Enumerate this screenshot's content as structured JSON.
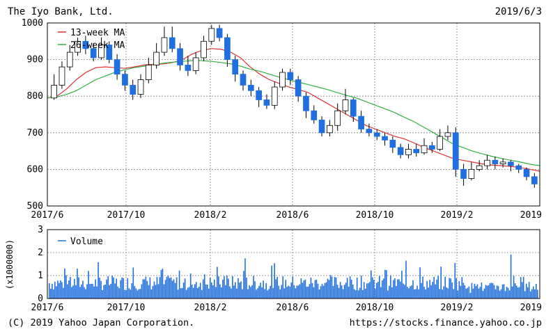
{
  "header": {
    "company": "The Iyo Bank, Ltd.",
    "date": "2019/6/3"
  },
  "footer": {
    "copyright": "(C) 2019 Yahoo Japan Corporation.",
    "url": "https://stocks.finance.yahoo.co.jp"
  },
  "colors": {
    "up": "#ffffff",
    "down": "#1f6fe0",
    "ma13": "#e03030",
    "ma26": "#30b040",
    "volume": "#1f6fe0",
    "grid": "#808080"
  },
  "chart_data": [
    {
      "type": "candlestick",
      "ylim": [
        500,
        1000
      ],
      "yticks": [
        "500",
        "600",
        "700",
        "800",
        "900",
        "1000"
      ],
      "xticks": [
        "2017/6",
        "2017/10",
        "2018/2",
        "2018/6",
        "2018/10",
        "2019/2",
        "2019"
      ],
      "series": [
        {
          "name": "13-week MA",
          "color": "#e03030",
          "values": [
            795,
            800,
            820,
            845,
            865,
            878,
            880,
            878,
            876,
            880,
            885,
            887,
            888,
            892,
            900,
            915,
            925,
            930,
            928,
            920,
            905,
            880,
            860,
            845,
            835,
            825,
            818,
            810,
            795,
            780,
            765,
            750,
            735,
            720,
            710,
            700,
            690,
            683,
            672,
            660,
            650,
            640,
            630,
            625,
            620,
            615,
            612,
            610,
            608,
            605,
            600,
            595
          ]
        },
        {
          "name": "26-week MA",
          "color": "#30b040",
          "values": [
            795,
            798,
            805,
            815,
            830,
            845,
            855,
            865,
            872,
            878,
            882,
            886,
            890,
            893,
            895,
            897,
            897,
            895,
            892,
            888,
            882,
            874,
            868,
            860,
            852,
            845,
            838,
            832,
            825,
            818,
            810,
            802,
            795,
            785,
            775,
            765,
            755,
            742,
            730,
            715,
            700,
            685,
            670,
            660,
            650,
            643,
            636,
            630,
            625,
            620,
            614,
            610
          ]
        }
      ],
      "candles": [
        [
          795,
          830,
          860,
          790
        ],
        [
          830,
          880,
          895,
          820
        ],
        [
          880,
          920,
          940,
          870
        ],
        [
          920,
          950,
          960,
          910
        ],
        [
          950,
          930,
          965,
          915
        ],
        [
          930,
          905,
          945,
          895
        ],
        [
          905,
          940,
          960,
          900
        ],
        [
          940,
          900,
          950,
          890
        ],
        [
          900,
          860,
          915,
          845
        ],
        [
          860,
          830,
          870,
          815
        ],
        [
          830,
          805,
          845,
          790
        ],
        [
          805,
          845,
          860,
          795
        ],
        [
          845,
          885,
          905,
          835
        ],
        [
          885,
          920,
          945,
          875
        ],
        [
          920,
          960,
          990,
          910
        ],
        [
          960,
          930,
          990,
          920
        ],
        [
          930,
          885,
          945,
          870
        ],
        [
          885,
          870,
          910,
          855
        ],
        [
          870,
          905,
          920,
          860
        ],
        [
          905,
          950,
          965,
          895
        ],
        [
          950,
          985,
          995,
          940
        ],
        [
          985,
          960,
          995,
          950
        ],
        [
          960,
          900,
          970,
          880
        ],
        [
          900,
          860,
          910,
          840
        ],
        [
          860,
          830,
          870,
          815
        ],
        [
          830,
          815,
          845,
          800
        ],
        [
          815,
          790,
          825,
          770
        ],
        [
          790,
          775,
          805,
          765
        ],
        [
          775,
          825,
          840,
          765
        ],
        [
          825,
          865,
          875,
          815
        ],
        [
          865,
          845,
          875,
          830
        ],
        [
          845,
          800,
          855,
          785
        ],
        [
          800,
          760,
          810,
          740
        ],
        [
          760,
          735,
          775,
          725
        ],
        [
          735,
          700,
          745,
          690
        ],
        [
          700,
          720,
          735,
          690
        ],
        [
          720,
          760,
          780,
          705
        ],
        [
          760,
          790,
          820,
          750
        ],
        [
          790,
          745,
          795,
          730
        ],
        [
          745,
          710,
          760,
          700
        ],
        [
          710,
          700,
          725,
          690
        ],
        [
          700,
          690,
          710,
          680
        ],
        [
          690,
          680,
          700,
          665
        ],
        [
          680,
          660,
          690,
          645
        ],
        [
          660,
          640,
          670,
          630
        ],
        [
          640,
          655,
          670,
          630
        ],
        [
          655,
          645,
          670,
          635
        ],
        [
          645,
          665,
          685,
          640
        ],
        [
          665,
          655,
          675,
          645
        ],
        [
          655,
          690,
          710,
          650
        ],
        [
          690,
          700,
          720,
          680
        ],
        [
          700,
          600,
          715,
          580
        ]
      ],
      "extra_candles": [
        [
          600,
          575,
          615,
          555
        ],
        [
          575,
          600,
          620,
          570
        ],
        [
          600,
          610,
          625,
          595
        ],
        [
          610,
          625,
          640,
          600
        ],
        [
          625,
          615,
          635,
          600
        ],
        [
          615,
          620,
          630,
          605
        ],
        [
          620,
          610,
          625,
          595
        ],
        [
          610,
          600,
          615,
          590
        ],
        [
          600,
          580,
          605,
          570
        ],
        [
          580,
          560,
          590,
          550
        ]
      ]
    },
    {
      "type": "bar",
      "name": "Volume",
      "unit_label": "(x1000000)",
      "ylim": [
        0,
        3
      ],
      "yticks": [
        "0",
        "1",
        "2",
        "3"
      ],
      "xticks": [
        "2017/6",
        "2017/10",
        "2018/2",
        "2018/6",
        "2018/10",
        "2019/2",
        "2019"
      ]
    }
  ]
}
